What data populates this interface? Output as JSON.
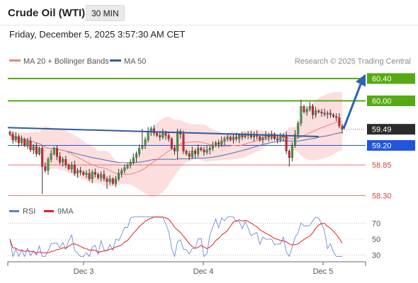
{
  "header": {
    "title": "Crude Oil (WTI)",
    "timeframe": "30 MIN",
    "datetime": "Friday, December 5, 2025 3:57:30 AM CET"
  },
  "legend": {
    "ma20_label": "MA 20 + Bollinger Bands",
    "ma50_label": "MA 50",
    "credit": "Research © 2025 Trading Central"
  },
  "colors": {
    "bullish": "#3fa23b",
    "bearish": "#e02222",
    "ma20": "#f08080",
    "ma50": "#2d5ea8",
    "resistance": "#55aa11",
    "pivot": "#2255dd",
    "support": "#e04040",
    "trend": "#2c5aa0",
    "arrow": "#2a64b4",
    "last": "#2b2b2b"
  },
  "chart_data": [
    {
      "type": "candlestick",
      "title": "Crude Oil (WTI)",
      "xlabel": "",
      "ylabel": "",
      "ylim": [
        58.23,
        60.59
      ],
      "x_tick_labels": [
        "Dec 3",
        "Dec 4",
        "Dec 5"
      ],
      "legend_position": "top-left",
      "indicators": [
        "MA 20 + Bollinger Bands",
        "MA 50"
      ],
      "levels": [
        {
          "label": "60.40",
          "value": 60.4,
          "kind": "resistance"
        },
        {
          "label": "60.00",
          "value": 60.0,
          "kind": "resistance"
        },
        {
          "label": "59.20",
          "value": 59.2,
          "kind": "pivot"
        },
        {
          "label": "58.85",
          "value": 58.85,
          "kind": "support"
        },
        {
          "label": "58.30",
          "value": 58.3,
          "kind": "support"
        }
      ],
      "last_price": {
        "label": "59.49",
        "value": 59.49
      },
      "closes": [
        59.4,
        59.3,
        59.36,
        59.25,
        59.31,
        59.2,
        59.28,
        59.12,
        59.18,
        59.05,
        59.15,
        58.82,
        58.75,
        58.95,
        59.05,
        59.15,
        59.0,
        58.9,
        58.95,
        58.85,
        58.78,
        58.85,
        58.7,
        58.75,
        58.72,
        58.68,
        58.7,
        58.6,
        58.72,
        58.68,
        58.62,
        58.68,
        58.6,
        58.55,
        58.6,
        58.52,
        58.6,
        58.7,
        58.75,
        58.8,
        58.85,
        58.9,
        58.98,
        59.05,
        59.15,
        59.2,
        59.3,
        59.45,
        59.5,
        59.42,
        59.38,
        59.35,
        59.42,
        59.38,
        59.32,
        59.15,
        59.1,
        59.45,
        59.4,
        59.1,
        59.05,
        59.0,
        59.1,
        59.05,
        59.15,
        59.12,
        59.08,
        59.12,
        59.15,
        59.2,
        59.25,
        59.22,
        59.28,
        59.32,
        59.35,
        59.3,
        59.35,
        59.32,
        59.38,
        59.35,
        59.4,
        59.38,
        59.35,
        59.4,
        59.36,
        59.3,
        59.34,
        59.38,
        59.35,
        59.4,
        59.32,
        59.3,
        59.35,
        59.38,
        59.1,
        58.98,
        59.2,
        59.4,
        59.6,
        59.9,
        59.8,
        59.85,
        59.9,
        59.75,
        59.82,
        59.8,
        59.78,
        59.76,
        59.78,
        59.75,
        59.72,
        59.7,
        59.55,
        59.49
      ],
      "rsi_panel": {
        "legend": [
          "RSI",
          "9MA"
        ],
        "y_tick_labels": [
          "70",
          "50",
          "30"
        ],
        "ylim": [
          25,
          75
        ]
      }
    }
  ]
}
